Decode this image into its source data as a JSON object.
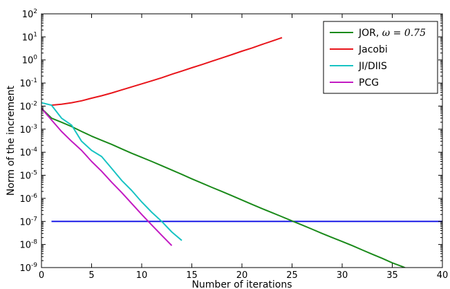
{
  "chart_data": {
    "type": "line",
    "title": "",
    "xlabel": "Number of iterations",
    "ylabel": "Norm of the increment",
    "xlim": [
      0,
      40
    ],
    "ylim": [
      1e-09,
      100
    ],
    "yscale": "log",
    "grid": false,
    "legend_position": "top-right",
    "x_ticks": [
      {
        "value": 0,
        "label": "0"
      },
      {
        "value": 5,
        "label": "5"
      },
      {
        "value": 10,
        "label": "10"
      },
      {
        "value": 15,
        "label": "15"
      },
      {
        "value": 20,
        "label": "20"
      },
      {
        "value": 25,
        "label": "25"
      },
      {
        "value": 30,
        "label": "30"
      },
      {
        "value": 35,
        "label": "35"
      },
      {
        "value": 40,
        "label": "40"
      }
    ],
    "y_ticks": [
      {
        "exp": -9,
        "base": "10",
        "sup": "-9"
      },
      {
        "exp": -8,
        "base": "10",
        "sup": "-8"
      },
      {
        "exp": -7,
        "base": "10",
        "sup": "-7"
      },
      {
        "exp": -6,
        "base": "10",
        "sup": "-6"
      },
      {
        "exp": -5,
        "base": "10",
        "sup": "-5"
      },
      {
        "exp": -4,
        "base": "10",
        "sup": "-4"
      },
      {
        "exp": -3,
        "base": "10",
        "sup": "-3"
      },
      {
        "exp": -2,
        "base": "10",
        "sup": "-2"
      },
      {
        "exp": -1,
        "base": "10",
        "sup": "-1"
      },
      {
        "exp": 0,
        "base": "10",
        "sup": "0"
      },
      {
        "exp": 1,
        "base": "10",
        "sup": "1"
      },
      {
        "exp": 2,
        "base": "10",
        "sup": "2"
      }
    ],
    "series": [
      {
        "name": "JOR, ω = 0.75",
        "legend_main": "JOR, ",
        "legend_math": "ω = 0.75",
        "color": "#1a8a1a",
        "x": [
          0,
          1,
          2,
          3,
          4,
          5,
          6,
          7,
          8,
          9,
          10,
          11,
          12,
          13,
          14,
          15,
          16,
          17,
          18,
          19,
          20,
          21,
          22,
          23,
          24,
          25,
          26,
          27,
          28,
          29,
          30,
          31,
          32,
          33,
          34,
          35,
          36,
          37,
          38,
          39
        ],
        "y": [
          0.008,
          0.003,
          0.002,
          0.0013,
          0.0008,
          0.0005,
          0.00033,
          0.00022,
          0.00014,
          9e-05,
          6e-05,
          4e-05,
          2.6e-05,
          1.7e-05,
          1.1e-05,
          7e-06,
          4.6e-06,
          3e-06,
          2e-06,
          1.3e-06,
          8.5e-07,
          5.5e-07,
          3.6e-07,
          2.4e-07,
          1.6e-07,
          1.05e-07,
          7e-08,
          4.6e-08,
          3e-08,
          2e-08,
          1.35e-08,
          9e-09,
          5.8e-09,
          3.8e-09,
          2.5e-09,
          1.6e-09,
          1.1e-09,
          7.2e-10,
          4.7e-10,
          3e-10
        ]
      },
      {
        "name": "Jacobi",
        "color": "#e8141a",
        "x": [
          1,
          2,
          3,
          4,
          5,
          6,
          7,
          8,
          9,
          10,
          11,
          12,
          13,
          14,
          15,
          16,
          17,
          18,
          19,
          20,
          21,
          22,
          23,
          24
        ],
        "y": [
          0.011,
          0.012,
          0.014,
          0.017,
          0.022,
          0.028,
          0.037,
          0.05,
          0.068,
          0.092,
          0.125,
          0.17,
          0.24,
          0.33,
          0.46,
          0.63,
          0.88,
          1.22,
          1.7,
          2.4,
          3.3,
          4.7,
          6.6,
          9.3
        ]
      },
      {
        "name": "JI/DIIS",
        "color": "#18c3c3",
        "x": [
          0,
          1,
          2,
          3,
          4,
          5,
          6,
          7,
          8,
          9,
          10,
          11,
          12,
          13,
          14
        ],
        "y": [
          0.014,
          0.011,
          0.003,
          0.0015,
          0.0003,
          0.00012,
          6.5e-05,
          2e-05,
          6e-06,
          2.2e-06,
          7e-07,
          2.5e-07,
          1e-07,
          3.5e-08,
          1.5e-08
        ]
      },
      {
        "name": "PCG",
        "color": "#c21ac2",
        "x": [
          0,
          1,
          2,
          3,
          4,
          5,
          6,
          7,
          8,
          9,
          10,
          11,
          12,
          13
        ],
        "y": [
          0.008,
          0.0025,
          0.0008,
          0.0003,
          0.00012,
          4e-05,
          1.5e-05,
          5e-06,
          1.8e-06,
          6e-07,
          2e-07,
          7e-08,
          2.5e-08,
          9e-09
        ]
      }
    ],
    "reference_lines": [
      {
        "color": "#1a1ae6",
        "x": [
          1,
          40
        ],
        "y": [
          1e-07,
          1e-07
        ]
      }
    ]
  }
}
